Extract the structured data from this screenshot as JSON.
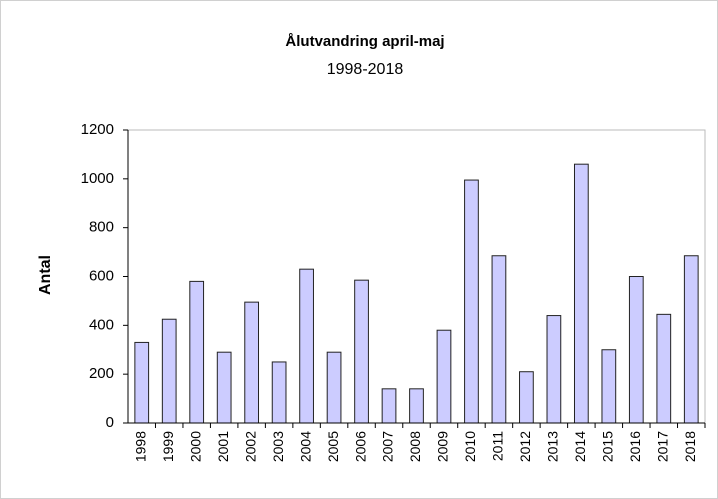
{
  "chart_data": {
    "type": "bar",
    "title": "Ålutvandring april-maj",
    "subtitle": "1998-2018",
    "y_label": "Antal",
    "categories": [
      "1998",
      "1999",
      "2000",
      "2001",
      "2002",
      "2003",
      "2004",
      "2005",
      "2006",
      "2007",
      "2008",
      "2009",
      "2010",
      "2011",
      "2012",
      "2013",
      "2014",
      "2015",
      "2016",
      "2017",
      "2018"
    ],
    "values": [
      330,
      425,
      580,
      290,
      495,
      250,
      630,
      290,
      585,
      140,
      140,
      380,
      995,
      685,
      210,
      440,
      1060,
      300,
      600,
      445,
      685
    ],
    "color": "#ccccff",
    "ylim": [
      0,
      1200
    ],
    "yticks": [
      0,
      200,
      400,
      600,
      800,
      1000,
      1200
    ],
    "grid": false
  }
}
